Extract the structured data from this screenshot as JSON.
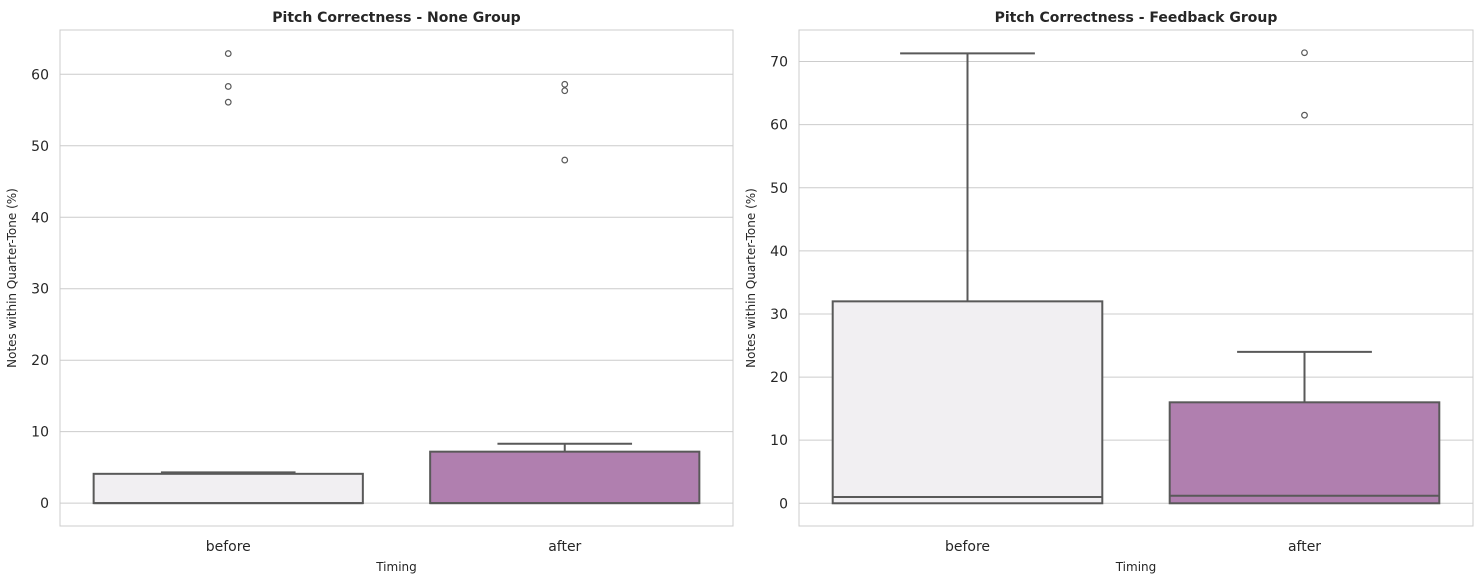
{
  "chart_data": [
    {
      "type": "boxplot",
      "title": "Pitch Correctness - None Group",
      "xlabel": "Timing",
      "ylabel": "Notes within Quarter-Tone (%)",
      "categories": [
        "before",
        "after"
      ],
      "ylim": [
        -3.2,
        66.2
      ],
      "yticks": [
        0,
        10,
        20,
        30,
        40,
        50,
        60
      ],
      "grid": "horizontal",
      "colors": [
        "#f1eff2",
        "#b07faf"
      ],
      "edge_color": "#595959",
      "boxes": [
        {
          "category": "before",
          "whisker_low": 0,
          "q1": 0,
          "median": 0,
          "q3": 4.1,
          "whisker_high": 4.3,
          "outliers": [
            56.1,
            58.3,
            62.9
          ]
        },
        {
          "category": "after",
          "whisker_low": 0,
          "q1": 0,
          "median": 0,
          "q3": 7.2,
          "whisker_high": 8.3,
          "outliers": [
            48.0,
            57.7,
            58.6
          ]
        }
      ]
    },
    {
      "type": "boxplot",
      "title": "Pitch Correctness - Feedback Group",
      "xlabel": "Timing",
      "ylabel": "Notes within Quarter-Tone (%)",
      "categories": [
        "before",
        "after"
      ],
      "ylim": [
        -3.6,
        75.0
      ],
      "yticks": [
        0,
        10,
        20,
        30,
        40,
        50,
        60,
        70
      ],
      "grid": "horizontal",
      "colors": [
        "#f1eff2",
        "#b07faf"
      ],
      "edge_color": "#595959",
      "boxes": [
        {
          "category": "before",
          "whisker_low": 0,
          "q1": 0,
          "median": 1.0,
          "q3": 32.0,
          "whisker_high": 71.3,
          "outliers": []
        },
        {
          "category": "after",
          "whisker_low": 0,
          "q1": 0,
          "median": 1.2,
          "q3": 16.0,
          "whisker_high": 24.0,
          "outliers": [
            61.5,
            71.4
          ]
        }
      ]
    }
  ]
}
